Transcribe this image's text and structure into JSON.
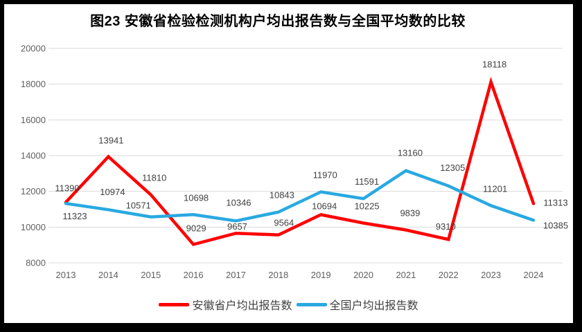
{
  "title": "图23 安徽省检验检测机构户均出报告数与全国平均数的比较",
  "legend": [
    {
      "label": "安徽省户均出报告数",
      "color": "#fe0000"
    },
    {
      "label": "全国户均出报告数",
      "color": "#29a9e1"
    }
  ],
  "chart_data": {
    "type": "line",
    "title": "图23 安徽省检验检测机构户均出报告数与全国平均数的比较",
    "categories": [
      "2013",
      "2014",
      "2015",
      "2016",
      "2017",
      "2018",
      "2019",
      "2020",
      "2021",
      "2022",
      "2023",
      "2024"
    ],
    "series": [
      {
        "name": "安徽省户均出报告数",
        "color": "#fe0000",
        "values": [
          11390,
          13941,
          11810,
          9029,
          9657,
          9564,
          10694,
          10225,
          9839,
          9310,
          18118,
          11313
        ]
      },
      {
        "name": "全国户均出报告数",
        "color": "#29a9e1",
        "values": [
          11323,
          10974,
          10571,
          10698,
          10346,
          10843,
          11970,
          11591,
          13160,
          12305,
          11201,
          10385
        ]
      }
    ],
    "y_ticks": [
      20000,
      18000,
      16000,
      14000,
      12000,
      10000,
      8000
    ],
    "ylim": [
      8000,
      20000
    ],
    "xlabel": "",
    "ylabel": "",
    "grid": true,
    "data_labels": true,
    "legend_position": "bottom",
    "label_offsets": [
      [
        [
          2,
          -20
        ],
        [
          4,
          -23
        ],
        [
          5,
          -24
        ],
        [
          4,
          -23
        ],
        [
          2,
          -9
        ],
        [
          8,
          -17
        ],
        [
          5,
          -12
        ],
        [
          5,
          -24
        ],
        [
          6,
          -24
        ],
        [
          -4,
          -18
        ],
        [
          5,
          -25
        ],
        [
          32,
          -1
        ]
      ],
      [
        [
          13,
          19
        ],
        [
          6,
          -25
        ],
        [
          -18,
          -16
        ],
        [
          4,
          -24
        ],
        [
          4,
          -26
        ],
        [
          5,
          -24
        ],
        [
          6,
          -24
        ],
        [
          5,
          -24
        ],
        [
          6,
          -25
        ],
        [
          6,
          -26
        ],
        [
          6,
          -24
        ],
        [
          32,
          8
        ]
      ]
    ],
    "colors": {
      "grid": "#d9d9d9",
      "tick_label": "#5f5f5f",
      "data_label": "#3f3f3f",
      "frame_border": "#000000",
      "background": "#ffffff"
    }
  }
}
